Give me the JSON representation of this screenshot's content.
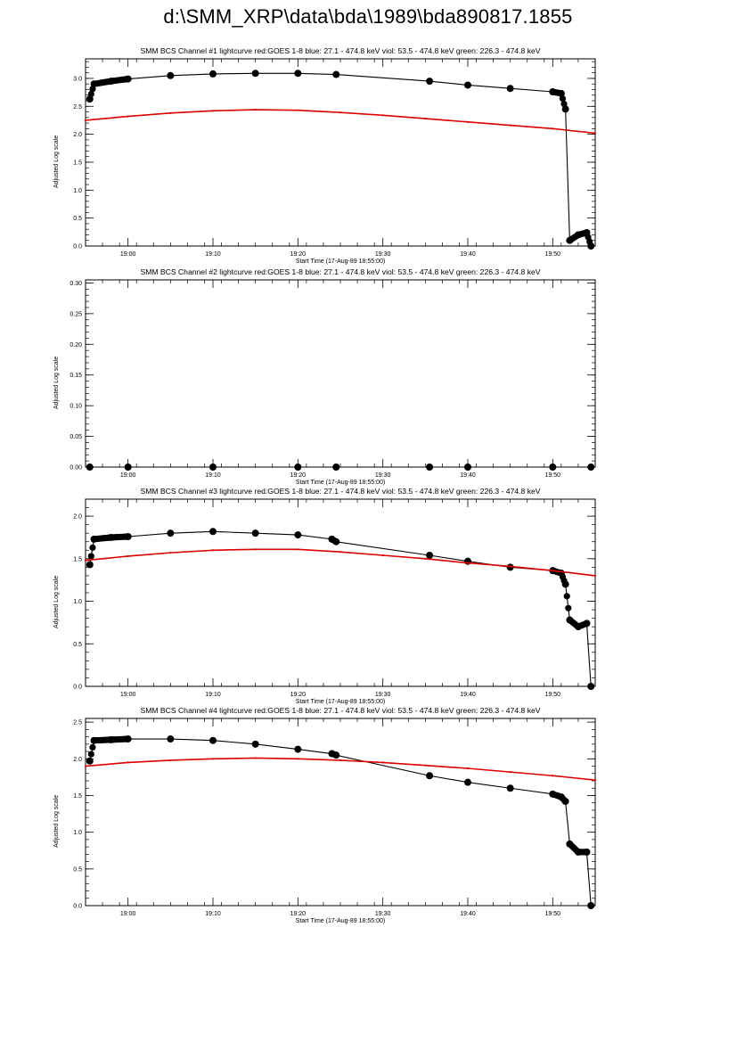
{
  "page": {
    "title": "d:\\SMM_XRP\\data\\bda\\1989\\bda890817.1855"
  },
  "chart_data": [
    {
      "type": "scatter",
      "title": "SMM BCS Channel #1 lightcurve  red:GOES 1-8  blue: 27.1 - 474.8 keV  viol: 53.5 - 474.8 keV  green: 226.3 - 474.8 keV",
      "xlabel": "Start Time (17-Aug-89 18:55:00)",
      "ylabel": "Adjusted Log scale",
      "xlim": [
        "18:55",
        "19:55"
      ],
      "ylim": [
        0,
        3.35
      ],
      "xticks": [
        "19:00",
        "19:10",
        "19:20",
        "19:30",
        "19:40",
        "19:50"
      ],
      "yticks": [
        "0.0",
        "0.5",
        "1.0",
        "1.5",
        "2.0",
        "2.5",
        "3.0"
      ],
      "series": [
        {
          "color": "#000000",
          "x": [
            "18:55.5",
            "18:56",
            "18:58",
            "19:00",
            "19:05",
            "19:10",
            "19:15",
            "19:20",
            "19:24.5",
            "19:35.5",
            "19:40",
            "19:45",
            "19:50",
            "19:51",
            "19:51.5",
            "19:52",
            "19:53",
            "19:54",
            "19:54.5"
          ],
          "y": [
            2.63,
            2.9,
            2.95,
            2.99,
            3.05,
            3.08,
            3.09,
            3.09,
            3.07,
            2.95,
            2.88,
            2.82,
            2.76,
            2.73,
            2.45,
            0.1,
            0.2,
            0.24,
            0.0
          ]
        },
        {
          "color": "#dd0000",
          "x": [
            "18:55",
            "19:00",
            "19:05",
            "19:10",
            "19:15",
            "19:20",
            "19:25",
            "19:30",
            "19:35",
            "19:40",
            "19:45",
            "19:50",
            "19:55"
          ],
          "y": [
            2.25,
            2.32,
            2.38,
            2.42,
            2.44,
            2.43,
            2.39,
            2.34,
            2.28,
            2.22,
            2.16,
            2.1,
            2.02
          ]
        }
      ]
    },
    {
      "type": "scatter",
      "title": "SMM BCS Channel #2 lightcurve  red:GOES 1-8  blue: 27.1 - 474.8 keV  viol: 53.5 - 474.8 keV  green: 226.3 - 474.8 keV",
      "xlabel": "Start Time (17-Aug-89 18:55:00)",
      "ylabel": "Adjusted Log scale",
      "xlim": [
        "18:55",
        "19:55"
      ],
      "ylim": [
        0,
        0.305
      ],
      "xticks": [
        "19:00",
        "19:10",
        "19:20",
        "19:30",
        "19:40",
        "19:50"
      ],
      "yticks": [
        "0.00",
        "0.05",
        "0.10",
        "0.15",
        "0.20",
        "0.25",
        "0.30"
      ],
      "series": [
        {
          "color": "#000000",
          "x": [
            "18:55.5",
            "19:00",
            "19:10",
            "19:20",
            "19:24.5",
            "19:35.5",
            "19:40",
            "19:50",
            "19:54.5"
          ],
          "y": [
            0,
            0,
            0,
            0,
            0,
            0,
            0,
            0,
            0
          ]
        }
      ]
    },
    {
      "type": "scatter",
      "title": "SMM BCS Channel #3 lightcurve  red:GOES 1-8  blue: 27.1 - 474.8 keV  viol: 53.5 - 474.8 keV  green: 226.3 - 474.8 keV",
      "xlabel": "Start Time (17-Aug-89 18:55:00)",
      "ylabel": "Adjusted Log scale",
      "xlim": [
        "18:55",
        "19:55"
      ],
      "ylim": [
        0,
        2.2
      ],
      "xticks": [
        "19:00",
        "19:10",
        "19:20",
        "19:30",
        "19:40",
        "19:50"
      ],
      "yticks": [
        "0.0",
        "0.5",
        "1.0",
        "1.5",
        "2.0"
      ],
      "series": [
        {
          "color": "#000000",
          "x": [
            "18:55.5",
            "18:56",
            "18:58",
            "19:00",
            "19:05",
            "19:10",
            "19:15",
            "19:20",
            "19:24",
            "19:24.5",
            "19:35.5",
            "19:40",
            "19:45",
            "19:50",
            "19:51",
            "19:51.5",
            "19:52",
            "19:53",
            "19:54",
            "19:54.5"
          ],
          "y": [
            1.43,
            1.73,
            1.75,
            1.76,
            1.8,
            1.82,
            1.8,
            1.78,
            1.73,
            1.7,
            1.54,
            1.47,
            1.4,
            1.36,
            1.33,
            1.2,
            0.78,
            0.7,
            0.74,
            0.0
          ]
        },
        {
          "color": "#dd0000",
          "x": [
            "18:55",
            "19:00",
            "19:05",
            "19:10",
            "19:15",
            "19:20",
            "19:25",
            "19:30",
            "19:35",
            "19:40",
            "19:45",
            "19:50",
            "19:55"
          ],
          "y": [
            1.48,
            1.53,
            1.57,
            1.6,
            1.61,
            1.61,
            1.58,
            1.54,
            1.5,
            1.45,
            1.41,
            1.36,
            1.3
          ]
        }
      ]
    },
    {
      "type": "scatter",
      "title": "SMM BCS Channel #4 lightcurve  red:GOES 1-8  blue: 27.1 - 474.8 keV  viol: 53.5 - 474.8 keV  green: 226.3 - 474.8 keV",
      "xlabel": "Start Time (17-Aug-89 18:55:00)",
      "ylabel": "Adjusted Log scale",
      "xlim": [
        "18:55",
        "19:55"
      ],
      "ylim": [
        0,
        2.55
      ],
      "xticks": [
        "19:00",
        "19:10",
        "19:20",
        "19:30",
        "19:40",
        "19:50"
      ],
      "yticks": [
        "0.0",
        "0.5",
        "1.0",
        "1.5",
        "2.0",
        "2.5"
      ],
      "series": [
        {
          "color": "#000000",
          "x": [
            "18:55.5",
            "18:56",
            "18:58",
            "19:00",
            "19:05",
            "19:10",
            "19:15",
            "19:20",
            "19:24",
            "19:24.5",
            "19:35.5",
            "19:40",
            "19:45",
            "19:50",
            "19:51",
            "19:51.5",
            "19:52",
            "19:53",
            "19:54",
            "19:54.5"
          ],
          "y": [
            1.97,
            2.25,
            2.26,
            2.27,
            2.27,
            2.25,
            2.2,
            2.13,
            2.07,
            2.05,
            1.77,
            1.68,
            1.6,
            1.52,
            1.48,
            1.42,
            0.84,
            0.73,
            0.73,
            0.0
          ]
        },
        {
          "color": "#dd0000",
          "x": [
            "18:55",
            "19:00",
            "19:05",
            "19:10",
            "19:15",
            "19:20",
            "19:25",
            "19:30",
            "19:35",
            "19:40",
            "19:45",
            "19:50",
            "19:55"
          ],
          "y": [
            1.9,
            1.95,
            1.98,
            2.0,
            2.01,
            2.0,
            1.98,
            1.95,
            1.91,
            1.87,
            1.82,
            1.77,
            1.71
          ]
        }
      ]
    }
  ]
}
